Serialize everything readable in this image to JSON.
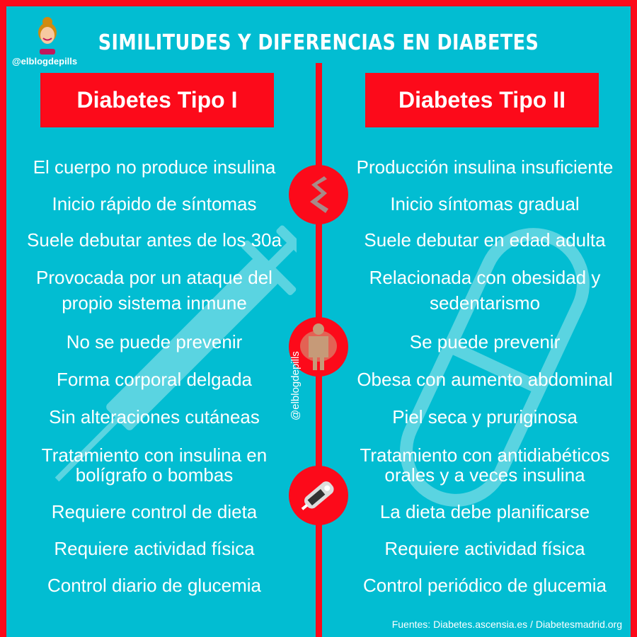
{
  "title": "SIMILITUDES Y DIFERENCIAS EN DIABETES",
  "handle": "@elblogdepills",
  "vertical_handle": "@elblogdepills",
  "colors": {
    "background": "#02bdd2",
    "accent": "#fc0a1a",
    "text": "#ffffff"
  },
  "left": {
    "header": "Diabetes Tipo I",
    "items": [
      "El cuerpo no produce insulina",
      "Inicio rápido de síntomas",
      "Suele debutar antes de los 30a",
      "Provocada por un ataque del propio sistema inmune",
      "No se puede prevenir",
      "Forma corporal delgada",
      "Sin alteraciones cutáneas",
      "Tratamiento con insulina en bolígrafo o bombas",
      "Requiere control de dieta",
      "Requiere actividad física",
      "Control diario de glucemia"
    ]
  },
  "right": {
    "header": "Diabetes Tipo II",
    "items": [
      "Producción insulina insuficiente",
      "Inicio síntomas gradual",
      "Suele debutar en edad adulta",
      "Relacionada con obesidad y sedentarismo",
      "Se puede prevenir",
      "Obesa con aumento abdominal",
      "Piel seca y pruriginosa",
      "Tratamiento con antidiabéticos orales y a veces insulina",
      "La dieta debe planificarse",
      "Requiere actividad física",
      "Control periódico de glucemia"
    ]
  },
  "icons": [
    "dna-ribbon-icon",
    "body-shape-icon",
    "glucometer-icon",
    "syringe-icon",
    "pill-icon"
  ],
  "source": "Fuentes: Diabetes.ascensia.es / Diabetesmadrid.org"
}
